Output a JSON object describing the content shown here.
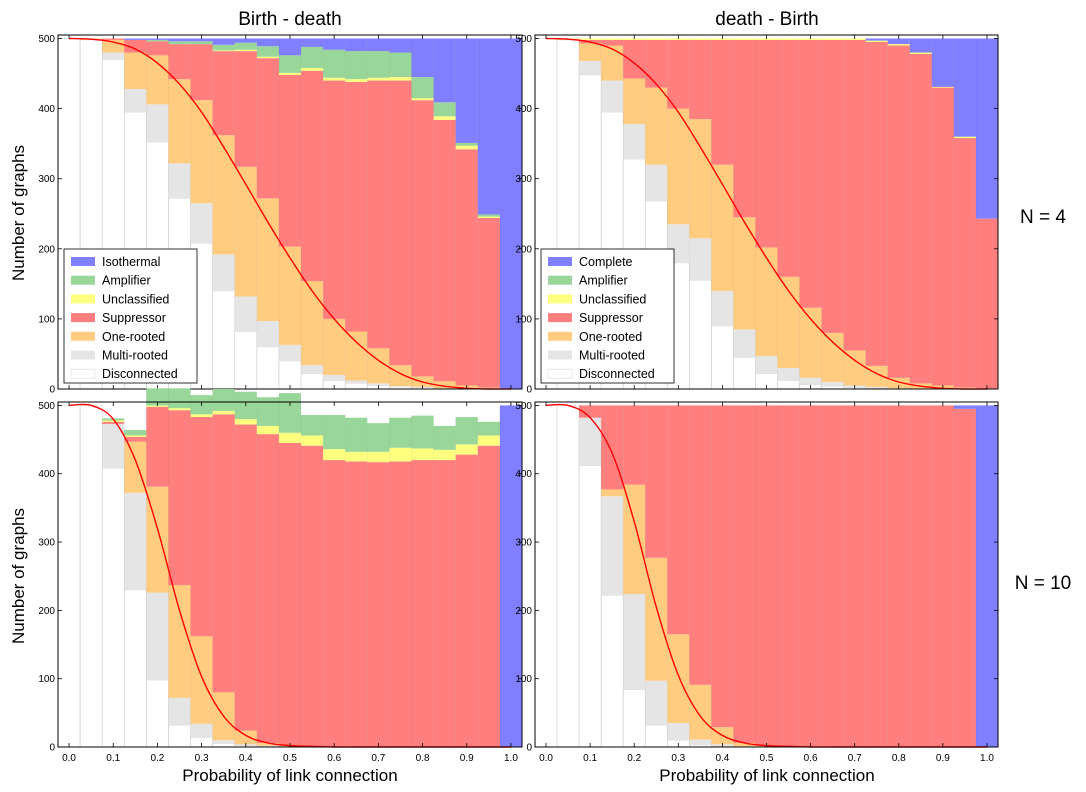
{
  "columns": [
    "Birth - death",
    "death - Birth"
  ],
  "rows": [
    "N = 4",
    "N = 10"
  ],
  "ylabel": "Number of graphs",
  "xlabel": "Probability of link connection",
  "xticks": [
    "0.0",
    "0.1",
    "0.2",
    "0.3",
    "0.4",
    "0.5",
    "0.6",
    "0.7",
    "0.8",
    "0.9",
    "1.0"
  ],
  "yticks": [
    "0",
    "100",
    "200",
    "300",
    "400",
    "500"
  ],
  "colors": {
    "Isothermal": "#7f7fff",
    "Complete": "#7f7fff",
    "Amplifier": "#99d699",
    "Unclassified": "#ffff7f",
    "Suppressor": "#ff7f7f",
    "One-rooted": "#ffcc80",
    "Multi-rooted": "#e5e5e5",
    "Disconnected": "#ffffff",
    "curve": "#ff0000"
  },
  "chart_data": [
    {
      "type": "bar",
      "stacked": true,
      "title": "Birth - death",
      "row_label": "N = 4",
      "xlabel": "",
      "ylabel": "Number of graphs",
      "xlim": [
        -0.025,
        1.025
      ],
      "ylim": [
        0,
        500
      ],
      "bin_width": 0.05,
      "legend": [
        "Isothermal",
        "Amplifier",
        "Unclassified",
        "Suppressor",
        "One-rooted",
        "Multi-rooted",
        "Disconnected"
      ],
      "legend_position": "lower-left",
      "x": [
        0.0,
        0.05,
        0.1,
        0.15,
        0.2,
        0.25,
        0.3,
        0.35,
        0.4,
        0.45,
        0.5,
        0.55,
        0.6,
        0.65,
        0.7,
        0.75,
        0.8,
        0.85,
        0.9,
        0.95,
        1.0
      ],
      "series": [
        {
          "name": "Disconnected",
          "values": [
            500,
            498,
            470,
            395,
            352,
            272,
            208,
            140,
            82,
            60,
            40,
            22,
            12,
            8,
            5,
            3,
            2,
            1,
            0,
            0,
            0
          ]
        },
        {
          "name": "Multi-rooted",
          "values": [
            0,
            0,
            10,
            33,
            54,
            50,
            57,
            52,
            50,
            37,
            23,
            12,
            8,
            4,
            3,
            1,
            1,
            0,
            0,
            0,
            0
          ]
        },
        {
          "name": "One-rooted",
          "values": [
            0,
            2,
            18,
            52,
            70,
            120,
            147,
            170,
            185,
            175,
            140,
            120,
            80,
            70,
            50,
            30,
            15,
            10,
            5,
            2,
            0
          ]
        },
        {
          "name": "Suppressor",
          "values": [
            0,
            0,
            2,
            18,
            20,
            50,
            80,
            120,
            165,
            200,
            245,
            300,
            340,
            356,
            382,
            406,
            394,
            373,
            337,
            242,
            0
          ]
        },
        {
          "name": "Unclassified",
          "values": [
            0,
            0,
            0,
            0,
            0,
            0,
            0,
            1,
            2,
            2,
            3,
            4,
            4,
            4,
            4,
            5,
            3,
            5,
            5,
            2,
            0
          ]
        },
        {
          "name": "Amplifier",
          "values": [
            0,
            0,
            0,
            0,
            2,
            4,
            4,
            8,
            10,
            15,
            25,
            30,
            40,
            40,
            38,
            35,
            30,
            20,
            4,
            3,
            0
          ]
        },
        {
          "name": "Isothermal",
          "values": [
            0,
            0,
            0,
            2,
            2,
            4,
            4,
            9,
            6,
            11,
            24,
            12,
            16,
            18,
            18,
            20,
            55,
            91,
            149,
            251,
            500
          ]
        }
      ],
      "curve_label": "",
      "curve_x": [
        0.0,
        0.05,
        0.1,
        0.15,
        0.2,
        0.25,
        0.3,
        0.35,
        0.4,
        0.45,
        0.5,
        0.55,
        0.6,
        0.65,
        0.7,
        0.75,
        0.8,
        0.85,
        0.9,
        0.95,
        1.0
      ],
      "curve_y": [
        500,
        499,
        495,
        485,
        465,
        435,
        395,
        345,
        292,
        238,
        187,
        140,
        100,
        67,
        41,
        22,
        10,
        4,
        1,
        0,
        0
      ]
    },
    {
      "type": "bar",
      "stacked": true,
      "title": "death - Birth",
      "row_label": "N = 4",
      "xlabel": "",
      "ylabel": "",
      "xlim": [
        -0.025,
        1.025
      ],
      "ylim": [
        0,
        500
      ],
      "bin_width": 0.05,
      "legend": [
        "Complete",
        "Amplifier",
        "Unclassified",
        "Suppressor",
        "One-rooted",
        "Multi-rooted",
        "Disconnected"
      ],
      "legend_position": "lower-left",
      "x": [
        0.0,
        0.05,
        0.1,
        0.15,
        0.2,
        0.25,
        0.3,
        0.35,
        0.4,
        0.45,
        0.5,
        0.55,
        0.6,
        0.65,
        0.7,
        0.75,
        0.8,
        0.85,
        0.9,
        0.95,
        1.0
      ],
      "series": [
        {
          "name": "Disconnected",
          "values": [
            500,
            498,
            448,
            395,
            328,
            268,
            180,
            155,
            90,
            45,
            22,
            12,
            6,
            4,
            2,
            1,
            0,
            0,
            0,
            0,
            0
          ]
        },
        {
          "name": "Multi-rooted",
          "values": [
            0,
            0,
            20,
            45,
            50,
            52,
            55,
            60,
            50,
            40,
            25,
            18,
            10,
            6,
            3,
            2,
            1,
            0,
            0,
            0,
            0
          ]
        },
        {
          "name": "One-rooted",
          "values": [
            0,
            2,
            25,
            50,
            65,
            110,
            165,
            170,
            180,
            160,
            155,
            130,
            100,
            70,
            50,
            30,
            15,
            8,
            5,
            2,
            0
          ]
        },
        {
          "name": "Suppressor",
          "values": [
            0,
            0,
            5,
            8,
            55,
            68,
            98,
            113,
            178,
            253,
            296,
            338,
            382,
            418,
            443,
            462,
            474,
            470,
            425,
            356,
            243
          ]
        },
        {
          "name": "Unclassified",
          "values": [
            0,
            0,
            2,
            2,
            2,
            2,
            2,
            2,
            2,
            2,
            2,
            2,
            2,
            2,
            2,
            2,
            2,
            2,
            1,
            2,
            0
          ]
        },
        {
          "name": "Amplifier",
          "values": [
            0,
            0,
            0,
            0,
            0,
            0,
            0,
            0,
            0,
            0,
            0,
            0,
            0,
            0,
            0,
            0,
            0,
            0,
            0,
            0,
            0
          ]
        },
        {
          "name": "Complete",
          "values": [
            0,
            0,
            0,
            0,
            0,
            0,
            0,
            0,
            0,
            0,
            0,
            0,
            0,
            0,
            0,
            3,
            8,
            20,
            69,
            140,
            257
          ]
        }
      ],
      "curve_label": "",
      "curve_x": [
        0.0,
        0.05,
        0.1,
        0.15,
        0.2,
        0.25,
        0.3,
        0.35,
        0.4,
        0.45,
        0.5,
        0.55,
        0.6,
        0.65,
        0.7,
        0.75,
        0.8,
        0.85,
        0.9,
        0.95,
        1.0
      ],
      "curve_y": [
        500,
        499,
        495,
        485,
        465,
        435,
        395,
        345,
        292,
        238,
        187,
        140,
        100,
        67,
        41,
        22,
        10,
        4,
        1,
        0,
        0
      ]
    },
    {
      "type": "bar",
      "stacked": true,
      "title": "",
      "row_label": "N = 10",
      "xlabel": "Probability of link connection",
      "ylabel": "Number of graphs",
      "xlim": [
        -0.025,
        1.025
      ],
      "ylim": [
        0,
        500
      ],
      "bin_width": 0.05,
      "legend": [],
      "x": [
        0.0,
        0.05,
        0.1,
        0.15,
        0.2,
        0.25,
        0.3,
        0.35,
        0.4,
        0.45,
        0.5,
        0.55,
        0.6,
        0.65,
        0.7,
        0.75,
        0.8,
        0.85,
        0.9,
        0.95,
        1.0
      ],
      "series": [
        {
          "name": "Disconnected",
          "values": [
            500,
            500,
            408,
            230,
            98,
            32,
            14,
            5,
            2,
            1,
            0,
            0,
            0,
            0,
            0,
            0,
            0,
            0,
            0,
            0,
            0
          ]
        },
        {
          "name": "Multi-rooted",
          "values": [
            0,
            0,
            65,
            142,
            128,
            40,
            20,
            5,
            2,
            1,
            0,
            0,
            0,
            0,
            0,
            0,
            0,
            0,
            0,
            0,
            0
          ]
        },
        {
          "name": "One-rooted",
          "values": [
            0,
            0,
            0,
            75,
            155,
            165,
            128,
            70,
            20,
            4,
            2,
            1,
            0,
            0,
            0,
            0,
            0,
            0,
            0,
            0,
            0
          ]
        },
        {
          "name": "Suppressor",
          "values": [
            0,
            0,
            3,
            7,
            117,
            256,
            321,
            407,
            448,
            452,
            443,
            440,
            420,
            418,
            417,
            418,
            420,
            420,
            428,
            441,
            0
          ]
        },
        {
          "name": "Unclassified",
          "values": [
            0,
            0,
            2,
            2,
            2,
            3,
            4,
            5,
            8,
            12,
            15,
            15,
            16,
            14,
            15,
            20,
            17,
            15,
            15,
            15,
            0
          ]
        },
        {
          "name": "Amplifier",
          "values": [
            0,
            0,
            3,
            8,
            25,
            29,
            28,
            32,
            40,
            42,
            58,
            30,
            50,
            50,
            42,
            44,
            48,
            35,
            40,
            20,
            0
          ]
        },
        {
          "name": "Isothermal",
          "values": [
            0,
            0,
            0,
            0,
            0,
            0,
            0,
            0,
            0,
            0,
            0,
            0,
            0,
            0,
            0,
            0,
            0,
            0,
            0,
            0,
            500
          ]
        }
      ],
      "curve_label": "",
      "curve_x": [
        0.0,
        0.05,
        0.1,
        0.15,
        0.2,
        0.25,
        0.3,
        0.35,
        0.4,
        0.45,
        0.5,
        0.55,
        0.6,
        0.65,
        0.7,
        0.75,
        0.8,
        0.85,
        0.9,
        0.95,
        1.0
      ],
      "curve_y": [
        500,
        500,
        480,
        420,
        320,
        200,
        103,
        45,
        17,
        6,
        2,
        1,
        0,
        0,
        0,
        0,
        0,
        0,
        0,
        0,
        0
      ]
    },
    {
      "type": "bar",
      "stacked": true,
      "title": "",
      "row_label": "N = 10",
      "xlabel": "Probability of link connection",
      "ylabel": "",
      "xlim": [
        -0.025,
        1.025
      ],
      "ylim": [
        0,
        500
      ],
      "bin_width": 0.05,
      "legend": [],
      "x": [
        0.0,
        0.05,
        0.1,
        0.15,
        0.2,
        0.25,
        0.3,
        0.35,
        0.4,
        0.45,
        0.5,
        0.55,
        0.6,
        0.65,
        0.7,
        0.75,
        0.8,
        0.85,
        0.9,
        0.95,
        1.0
      ],
      "series": [
        {
          "name": "Disconnected",
          "values": [
            500,
            500,
            412,
            222,
            84,
            32,
            10,
            3,
            1,
            0,
            0,
            0,
            0,
            0,
            0,
            0,
            0,
            0,
            0,
            0,
            0
          ]
        },
        {
          "name": "Multi-rooted",
          "values": [
            0,
            0,
            70,
            145,
            140,
            65,
            25,
            8,
            3,
            1,
            0,
            0,
            0,
            0,
            0,
            0,
            0,
            0,
            0,
            0,
            0
          ]
        },
        {
          "name": "One-rooted",
          "values": [
            0,
            0,
            0,
            10,
            160,
            180,
            130,
            80,
            25,
            5,
            2,
            1,
            0,
            0,
            0,
            0,
            0,
            0,
            0,
            0,
            0
          ]
        },
        {
          "name": "Suppressor",
          "values": [
            0,
            0,
            18,
            123,
            116,
            223,
            335,
            409,
            471,
            494,
            498,
            499,
            500,
            500,
            500,
            500,
            500,
            500,
            500,
            495,
            0
          ]
        },
        {
          "name": "Unclassified",
          "values": [
            0,
            0,
            0,
            0,
            0,
            0,
            0,
            0,
            0,
            0,
            0,
            0,
            0,
            0,
            0,
            0,
            0,
            0,
            0,
            0,
            0
          ]
        },
        {
          "name": "Amplifier",
          "values": [
            0,
            0,
            0,
            0,
            0,
            0,
            0,
            0,
            0,
            0,
            0,
            0,
            0,
            0,
            0,
            0,
            0,
            0,
            0,
            0,
            0
          ]
        },
        {
          "name": "Complete",
          "values": [
            0,
            0,
            0,
            0,
            0,
            0,
            0,
            0,
            0,
            0,
            0,
            0,
            0,
            0,
            0,
            0,
            0,
            0,
            0,
            5,
            500
          ]
        }
      ],
      "curve_label": "",
      "curve_x": [
        0.0,
        0.05,
        0.1,
        0.15,
        0.2,
        0.25,
        0.3,
        0.35,
        0.4,
        0.45,
        0.5,
        0.55,
        0.6,
        0.65,
        0.7,
        0.75,
        0.8,
        0.85,
        0.9,
        0.95,
        1.0
      ],
      "curve_y": [
        500,
        500,
        482,
        430,
        330,
        205,
        105,
        45,
        17,
        6,
        2,
        1,
        0,
        0,
        0,
        0,
        0,
        0,
        0,
        0,
        0
      ]
    }
  ]
}
